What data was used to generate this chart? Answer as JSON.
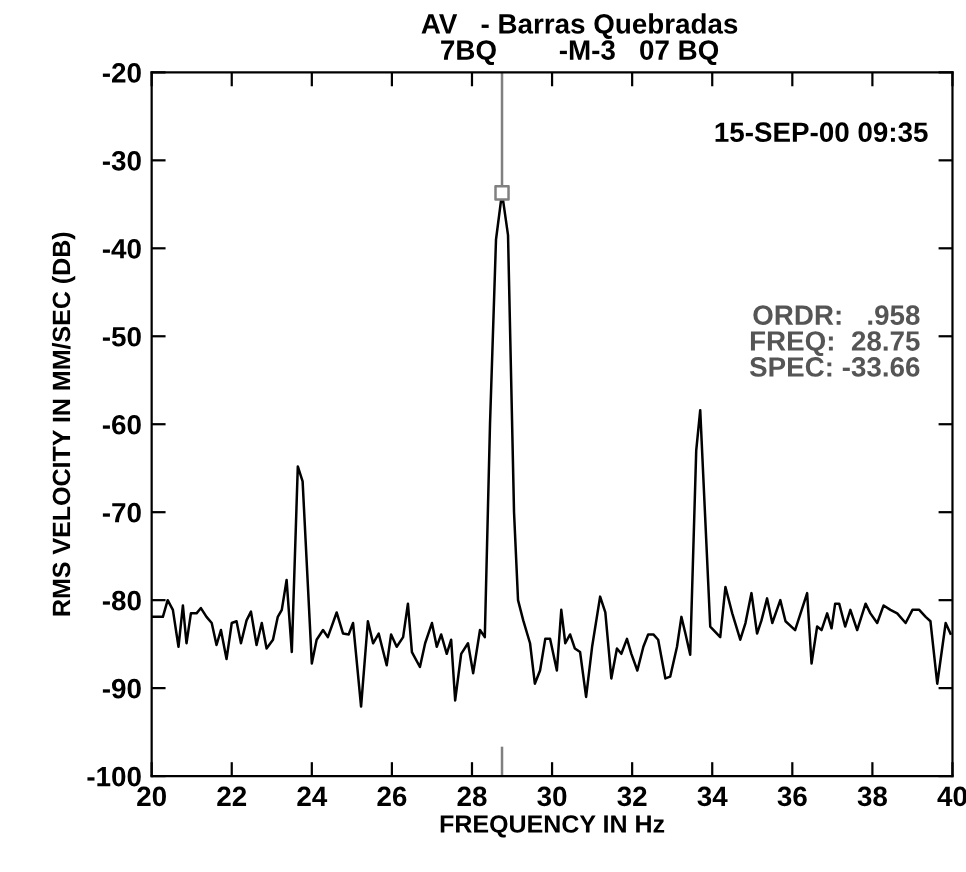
{
  "chart_data": {
    "type": "line",
    "title": "AV   - Barras Quebradas",
    "subtitle": "7BQ        -M-3   07 BQ",
    "xlabel": "FREQUENCY IN Hz",
    "ylabel": "RMS VELOCITY IN MM/SEC (DB)",
    "annotations": [
      "15-SEP-00 09:35",
      "ORDR:   .958\nFREQ:  28.75\nSPEC: -33.66"
    ],
    "series": [
      {
        "color": "#000000",
        "x": [
          20.03,
          20.28,
          20.4,
          20.53,
          20.67,
          20.78,
          20.87,
          20.98,
          21.12,
          21.23,
          21.37,
          21.5,
          21.62,
          21.73,
          21.87,
          22.0,
          22.12,
          22.23,
          22.37,
          22.48,
          22.62,
          22.75,
          22.87,
          23.03,
          23.15,
          23.25,
          23.37,
          23.5,
          23.65,
          23.77,
          24.0,
          24.12,
          24.28,
          24.4,
          24.62,
          24.78,
          24.92,
          25.03,
          25.23,
          25.4,
          25.53,
          25.67,
          25.87,
          25.98,
          26.12,
          26.28,
          26.4,
          26.5,
          26.7,
          26.83,
          27.0,
          27.12,
          27.23,
          27.37,
          27.48,
          27.58,
          27.73,
          27.9,
          28.03,
          28.2,
          28.32,
          28.45,
          28.6,
          28.75,
          28.9,
          29.05,
          29.15,
          29.28,
          29.45,
          29.57,
          29.7,
          29.83,
          29.95,
          30.12,
          30.23,
          30.33,
          30.45,
          30.57,
          30.7,
          30.85,
          31.0,
          31.2,
          31.33,
          31.48,
          31.62,
          31.73,
          31.87,
          31.98,
          32.13,
          32.28,
          32.4,
          32.53,
          32.65,
          32.83,
          32.95,
          33.12,
          33.23,
          33.33,
          33.45,
          33.6,
          33.7,
          33.95,
          34.2,
          34.33,
          34.5,
          34.7,
          34.83,
          34.98,
          35.12,
          35.23,
          35.37,
          35.5,
          35.7,
          35.83,
          36.07,
          36.37,
          36.48,
          36.62,
          36.73,
          36.87,
          36.98,
          37.07,
          37.17,
          37.32,
          37.45,
          37.62,
          37.83,
          37.95,
          38.12,
          38.28,
          38.45,
          38.62,
          38.83,
          39.0,
          39.17,
          39.33,
          39.45,
          39.62,
          39.83,
          39.95
        ],
        "values": [
          -81.9,
          -81.9,
          -80.0,
          -81.1,
          -85.3,
          -80.6,
          -84.9,
          -81.5,
          -81.5,
          -80.9,
          -81.9,
          -82.6,
          -85.1,
          -83.4,
          -86.7,
          -82.6,
          -82.4,
          -84.9,
          -82.3,
          -81.3,
          -85.1,
          -82.6,
          -85.5,
          -84.5,
          -81.9,
          -81.1,
          -77.7,
          -85.9,
          -64.8,
          -66.5,
          -87.2,
          -84.5,
          -83.4,
          -84.2,
          -81.4,
          -83.8,
          -83.9,
          -82.6,
          -92.1,
          -82.4,
          -84.9,
          -83.8,
          -87.4,
          -83.9,
          -85.3,
          -84.2,
          -80.4,
          -85.9,
          -87.6,
          -84.9,
          -82.6,
          -85.3,
          -83.9,
          -86.1,
          -84.5,
          -91.4,
          -86.1,
          -84.9,
          -88.3,
          -83.4,
          -84.2,
          -60.0,
          -39.0,
          -33.7,
          -38.5,
          -70.0,
          -80.0,
          -82.3,
          -84.9,
          -89.5,
          -88.0,
          -84.4,
          -84.4,
          -88.0,
          -81.1,
          -84.9,
          -83.9,
          -85.5,
          -85.9,
          -91.0,
          -85.3,
          -79.6,
          -81.4,
          -88.9,
          -85.5,
          -86.1,
          -84.4,
          -86.1,
          -88.0,
          -85.3,
          -83.9,
          -83.9,
          -84.5,
          -88.9,
          -88.7,
          -85.3,
          -81.9,
          -83.8,
          -86.2,
          -63.0,
          -58.4,
          -83.0,
          -84.2,
          -78.5,
          -81.5,
          -84.5,
          -82.6,
          -79.2,
          -83.8,
          -82.3,
          -79.8,
          -82.6,
          -80.0,
          -82.4,
          -83.4,
          -79.2,
          -87.2,
          -83.0,
          -83.4,
          -81.5,
          -83.2,
          -80.4,
          -80.4,
          -83.0,
          -81.1,
          -83.4,
          -80.4,
          -81.5,
          -82.6,
          -80.6,
          -81.1,
          -81.5,
          -82.6,
          -81.1,
          -81.1,
          -81.9,
          -82.4,
          -89.5,
          -82.6,
          -83.8
        ]
      },
      {
        "type": "scatter",
        "marker": "square",
        "color": "#808080",
        "x": [
          28.75
        ],
        "values": [
          -33.7
        ]
      }
    ],
    "ref_lines": [
      {
        "axis": "x",
        "value": 28.75,
        "color": "#808080"
      }
    ],
    "xlim": [
      20,
      40
    ],
    "xticks": [
      20,
      22,
      24,
      26,
      28,
      30,
      32,
      34,
      36,
      38,
      40
    ],
    "ylim": [
      -100,
      -20
    ],
    "yticks": [
      -100,
      -90,
      -80,
      -70,
      -60,
      -50,
      -40,
      -30,
      -20
    ],
    "grid": false,
    "legend": false
  }
}
